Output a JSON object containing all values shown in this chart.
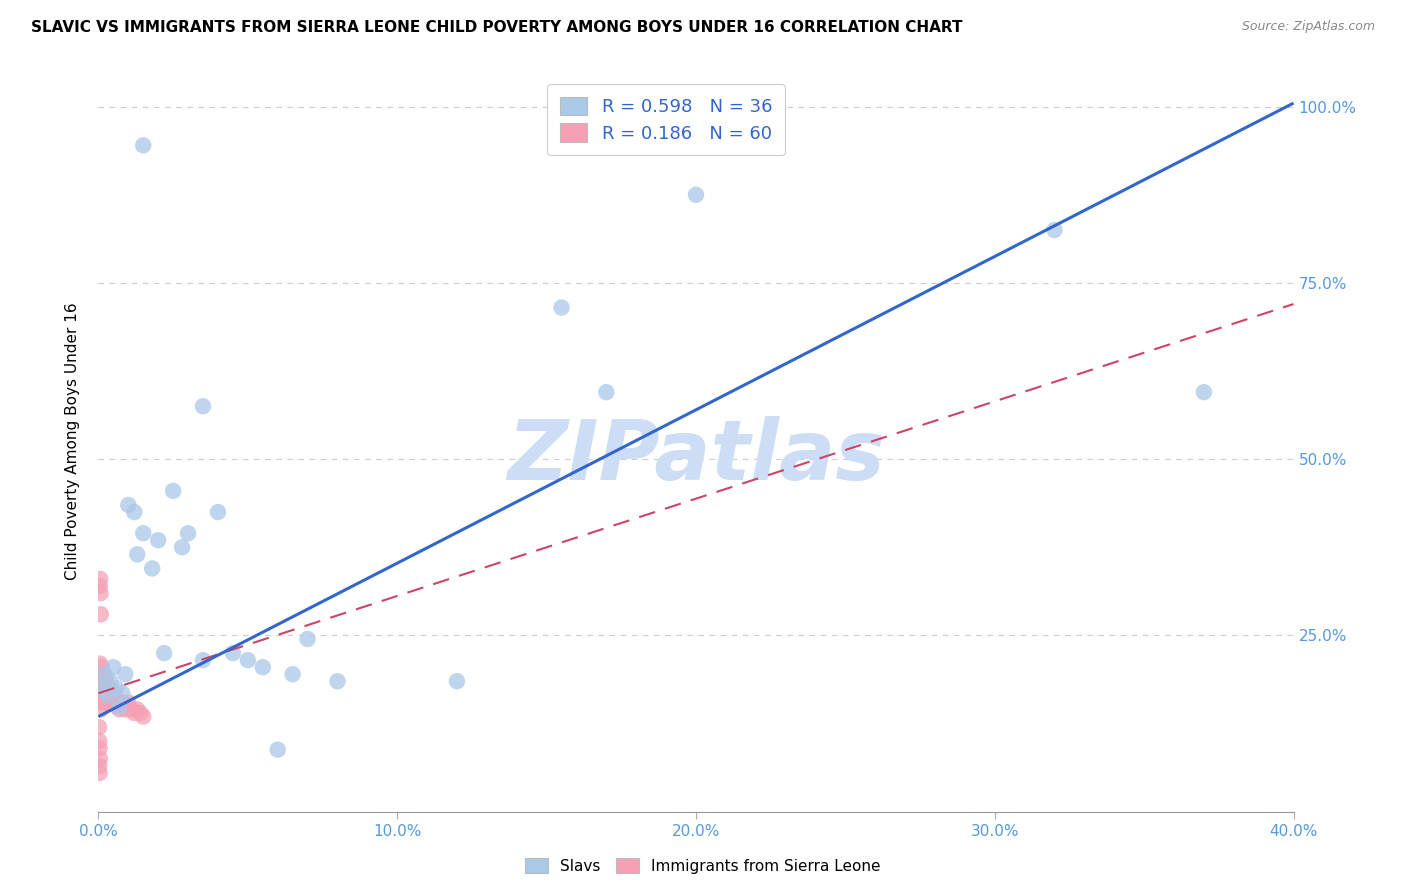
{
  "title": "SLAVIC VS IMMIGRANTS FROM SIERRA LEONE CHILD POVERTY AMONG BOYS UNDER 16 CORRELATION CHART",
  "source": "Source: ZipAtlas.com",
  "ylabel": "Child Poverty Among Boys Under 16",
  "xlim": [
    0.0,
    0.4
  ],
  "ylim": [
    0.0,
    1.05
  ],
  "xtick_vals": [
    0.0,
    0.1,
    0.2,
    0.3,
    0.4
  ],
  "xtick_labels": [
    "0.0%",
    "10.0%",
    "20.0%",
    "30.0%",
    "40.0%"
  ],
  "ytick_vals": [
    0.0,
    0.25,
    0.5,
    0.75,
    1.0
  ],
  "ytick_labels_left": [
    "",
    "25.0%",
    "50.0%",
    "75.0%",
    "100.0%"
  ],
  "ytick_labels_right": [
    "",
    "25.0%",
    "50.0%",
    "75.0%",
    "100.0%"
  ],
  "slavs_R": 0.598,
  "slavs_N": 36,
  "sierra_R": 0.186,
  "sierra_N": 60,
  "blue_scatter_color": "#aac8e8",
  "blue_line_color": "#3366cc",
  "pink_scatter_color": "#f5a0b5",
  "pink_line_color": "#cc4466",
  "axis_color": "#5599dd",
  "watermark": "ZIPatlas",
  "watermark_color": "#ccddf5",
  "legend_color": "#3366cc",
  "slavs_x": [
    0.001,
    0.002,
    0.003,
    0.004,
    0.005,
    0.006,
    0.007,
    0.008,
    0.009,
    0.01,
    0.012,
    0.013,
    0.015,
    0.018,
    0.02,
    0.022,
    0.025,
    0.028,
    0.03,
    0.035,
    0.04,
    0.05,
    0.055,
    0.06,
    0.065,
    0.07,
    0.08,
    0.12,
    0.155,
    0.17,
    0.2,
    0.32,
    0.37,
    0.035,
    0.015,
    0.045
  ],
  "slavs_y": [
    0.175,
    0.195,
    0.165,
    0.185,
    0.205,
    0.175,
    0.148,
    0.168,
    0.195,
    0.435,
    0.425,
    0.365,
    0.395,
    0.345,
    0.385,
    0.225,
    0.455,
    0.375,
    0.395,
    0.215,
    0.425,
    0.215,
    0.205,
    0.088,
    0.195,
    0.245,
    0.185,
    0.185,
    0.715,
    0.595,
    0.875,
    0.825,
    0.595,
    0.575,
    0.945,
    0.225
  ],
  "sierra_x": [
    0.0002,
    0.0003,
    0.0004,
    0.0005,
    0.0006,
    0.0007,
    0.0008,
    0.0009,
    0.001,
    0.0011,
    0.0012,
    0.0013,
    0.0014,
    0.0015,
    0.0016,
    0.0017,
    0.0018,
    0.0019,
    0.002,
    0.0021,
    0.0022,
    0.0024,
    0.0025,
    0.0026,
    0.0027,
    0.0028,
    0.003,
    0.003,
    0.0032,
    0.0034,
    0.0035,
    0.004,
    0.004,
    0.0042,
    0.0045,
    0.005,
    0.005,
    0.0055,
    0.006,
    0.006,
    0.007,
    0.007,
    0.008,
    0.009,
    0.01,
    0.011,
    0.012,
    0.013,
    0.014,
    0.015,
    0.0005,
    0.0006,
    0.0007,
    0.0008,
    0.0002,
    0.0003,
    0.0004,
    0.0005,
    0.0003,
    0.0004
  ],
  "sierra_y": [
    0.165,
    0.18,
    0.195,
    0.21,
    0.175,
    0.155,
    0.145,
    0.17,
    0.19,
    0.205,
    0.175,
    0.16,
    0.185,
    0.195,
    0.17,
    0.155,
    0.165,
    0.18,
    0.175,
    0.19,
    0.16,
    0.17,
    0.19,
    0.16,
    0.175,
    0.16,
    0.175,
    0.155,
    0.17,
    0.155,
    0.165,
    0.175,
    0.16,
    0.17,
    0.155,
    0.165,
    0.155,
    0.165,
    0.16,
    0.15,
    0.155,
    0.145,
    0.155,
    0.145,
    0.155,
    0.145,
    0.14,
    0.145,
    0.14,
    0.135,
    0.32,
    0.33,
    0.31,
    0.28,
    0.12,
    0.1,
    0.09,
    0.075,
    0.065,
    0.055
  ],
  "blue_line_x0": 0.0,
  "blue_line_y0": 0.135,
  "blue_line_x1": 0.4,
  "blue_line_y1": 1.005,
  "pink_line_x0": 0.0,
  "pink_line_y0": 0.168,
  "pink_line_x1": 0.4,
  "pink_line_y1": 0.72
}
